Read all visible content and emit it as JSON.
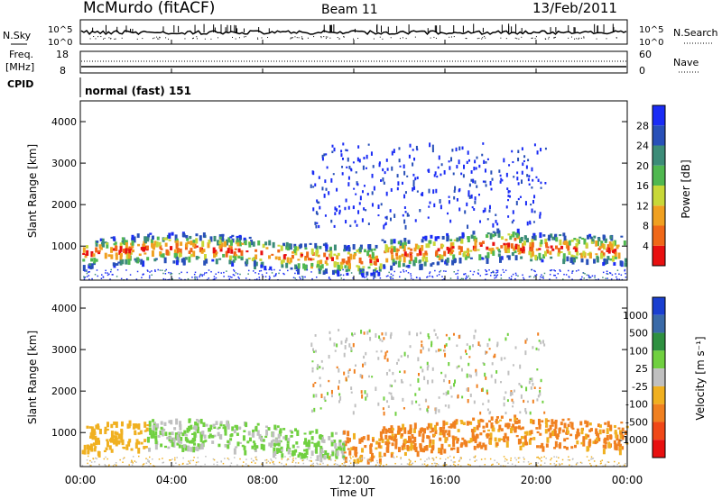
{
  "header": {
    "station": "McMurdo (fitACF)",
    "beam": "Beam 11",
    "date": "13/Feb/2011"
  },
  "noise_panel": {
    "left_label": "N.Sky",
    "right_label": "N.Search",
    "ytick_top": "10^5",
    "ytick_bottom": "10^0",
    "rtick_top": "10^5",
    "rtick_bottom": "10^0"
  },
  "freq_panel": {
    "left_label_line1": "Freq.",
    "left_label_line2": "[MHz]",
    "right_label": "Nave",
    "ytick_top": "18",
    "ytick_bottom": "8",
    "rtick_top": "60",
    "rtick_bottom": "0"
  },
  "cpid_panel": {
    "label": "CPID",
    "text": "normal (fast) 151"
  },
  "colors": {
    "frame": "#000000",
    "ground_scatter": "#808080",
    "power_low": "#1a3fd0",
    "power_high": "#e81010"
  },
  "chart_data": [
    {
      "type": "heatmap",
      "ylabel": "Slant Range [km]",
      "xlim": [
        "00:00",
        "00:00"
      ],
      "ylim": [
        180,
        4500
      ],
      "yticks": [
        "1000",
        "2000",
        "3000",
        "4000"
      ],
      "colorbar": {
        "label": "Power [dB]",
        "ticks": [
          "4",
          "8",
          "12",
          "16",
          "20",
          "24",
          "28"
        ],
        "colors": [
          "#1a2cf5",
          "#2850b8",
          "#3c8c78",
          "#50b850",
          "#c8d838",
          "#f0a020",
          "#f06818",
          "#e81010"
        ]
      },
      "series_profile": [
        {
          "t": "00:00",
          "center_km": 800
        },
        {
          "t": "04:00",
          "center_km": 900
        },
        {
          "t": "08:00",
          "center_km": 850
        },
        {
          "t": "12:00",
          "center_km": 900
        },
        {
          "t": "14:00",
          "center_km": 1000
        },
        {
          "t": "16:00",
          "center_km": 850
        },
        {
          "t": "20:00",
          "center_km": 900
        },
        {
          "t": "00:00",
          "center_km": 800
        }
      ]
    },
    {
      "type": "heatmap",
      "ylabel": "Slant Range [km]",
      "xlabel": "Time UT",
      "xticks": [
        "00:00",
        "04:00",
        "08:00",
        "12:00",
        "16:00",
        "20:00",
        "00:00"
      ],
      "ylim": [
        180,
        4500
      ],
      "yticks": [
        "1000",
        "2000",
        "3000",
        "4000"
      ],
      "colorbar": {
        "label": "Velocity [m s⁻¹]",
        "ticks": [
          "1000",
          "500",
          "100",
          "25",
          "-25",
          "-100",
          "-500",
          "-1000"
        ],
        "colors": [
          "#1a3fd0",
          "#3a6aa8",
          "#2e9040",
          "#70d040",
          "#c0c0c0",
          "#f0b020",
          "#f08020",
          "#f04818",
          "#e81010"
        ]
      }
    }
  ]
}
